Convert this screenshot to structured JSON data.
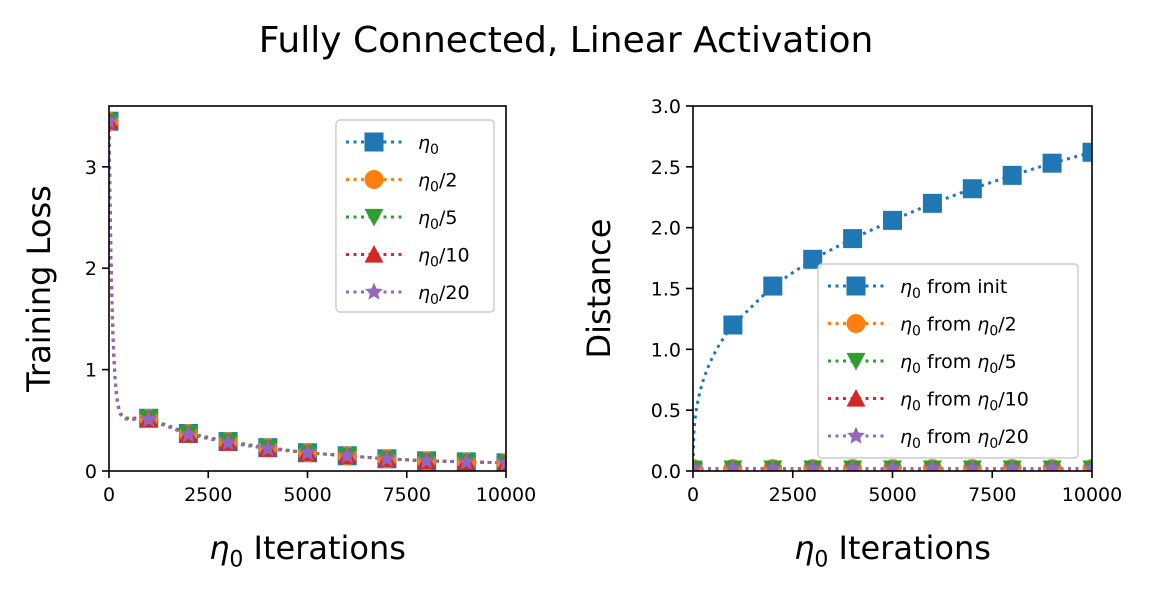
{
  "suptitle": "Fully Connected, Linear Activation",
  "colors": {
    "blue": "#1f77b4",
    "orange": "#ff7f0e",
    "green": "#2ca02c",
    "red": "#d62728",
    "purple": "#9467bd"
  },
  "chart_data": [
    {
      "type": "line",
      "title": "",
      "xlabel": "η₀ Iterations",
      "xlabel_parts": [
        "η",
        "0",
        " Iterations"
      ],
      "ylabel": "Training Loss",
      "xlim": [
        0,
        10000
      ],
      "ylim": [
        0,
        3.6
      ],
      "xticks": [
        0,
        2500,
        5000,
        7500,
        10000
      ],
      "xtick_labels": [
        "0",
        "2500",
        "5000",
        "7500",
        "10000"
      ],
      "yticks": [
        0,
        1,
        2,
        3
      ],
      "ytick_labels": [
        "0",
        "1",
        "2",
        "3"
      ],
      "legend_position": "top-right",
      "marker_x": [
        0,
        1000,
        2000,
        3000,
        4000,
        5000,
        6000,
        7000,
        8000,
        9000,
        10000
      ],
      "series": [
        {
          "name": "η0",
          "label_parts": [
            "η",
            "0",
            ""
          ],
          "color": "blue",
          "marker": "square",
          "x": [
            0,
            1000,
            2000,
            3000,
            4000,
            5000,
            6000,
            7000,
            8000,
            9000,
            10000
          ],
          "values": [
            3.45,
            0.52,
            0.37,
            0.29,
            0.23,
            0.18,
            0.15,
            0.12,
            0.1,
            0.09,
            0.08
          ]
        },
        {
          "name": "η0/2",
          "label_parts": [
            "η",
            "0",
            "/2"
          ],
          "color": "orange",
          "marker": "circle",
          "x": [
            0,
            1000,
            2000,
            3000,
            4000,
            5000,
            6000,
            7000,
            8000,
            9000,
            10000
          ],
          "values": [
            3.45,
            0.52,
            0.37,
            0.29,
            0.23,
            0.18,
            0.15,
            0.12,
            0.1,
            0.09,
            0.08
          ]
        },
        {
          "name": "η0/5",
          "label_parts": [
            "η",
            "0",
            "/5"
          ],
          "color": "green",
          "marker": "triangle-down",
          "x": [
            0,
            1000,
            2000,
            3000,
            4000,
            5000,
            6000,
            7000,
            8000,
            9000,
            10000
          ],
          "values": [
            3.45,
            0.52,
            0.37,
            0.29,
            0.23,
            0.18,
            0.15,
            0.12,
            0.1,
            0.09,
            0.08
          ]
        },
        {
          "name": "η0/10",
          "label_parts": [
            "η",
            "0",
            "/10"
          ],
          "color": "red",
          "marker": "triangle-up",
          "x": [
            0,
            1000,
            2000,
            3000,
            4000,
            5000,
            6000,
            7000,
            8000,
            9000,
            10000
          ],
          "values": [
            3.45,
            0.51,
            0.36,
            0.28,
            0.22,
            0.18,
            0.15,
            0.12,
            0.1,
            0.09,
            0.08
          ]
        },
        {
          "name": "η0/20",
          "label_parts": [
            "η",
            "0",
            "/20"
          ],
          "color": "purple",
          "marker": "star",
          "x": [
            0,
            1000,
            2000,
            3000,
            4000,
            5000,
            6000,
            7000,
            8000,
            9000,
            10000
          ],
          "values": [
            3.45,
            0.51,
            0.36,
            0.28,
            0.22,
            0.18,
            0.15,
            0.12,
            0.1,
            0.09,
            0.08
          ]
        }
      ]
    },
    {
      "type": "line",
      "title": "",
      "xlabel": "η₀ Iterations",
      "xlabel_parts": [
        "η",
        "0",
        " Iterations"
      ],
      "ylabel": "Distance",
      "xlim": [
        0,
        10000
      ],
      "ylim": [
        0,
        3.0
      ],
      "xticks": [
        0,
        2500,
        5000,
        7500,
        10000
      ],
      "xtick_labels": [
        "0",
        "2500",
        "5000",
        "7500",
        "10000"
      ],
      "yticks": [
        0,
        0.5,
        1.0,
        1.5,
        2.0,
        2.5,
        3.0
      ],
      "ytick_labels": [
        "0.0",
        "0.5",
        "1.0",
        "1.5",
        "2.0",
        "2.5",
        "3.0"
      ],
      "legend_position": "center-right",
      "series": [
        {
          "name": "η0 from init",
          "label_parts": [
            "η",
            "0",
            " from init"
          ],
          "color": "blue",
          "marker": "square",
          "x": [
            0,
            1000,
            2000,
            3000,
            4000,
            5000,
            6000,
            7000,
            8000,
            9000,
            10000
          ],
          "values": [
            0.0,
            1.2,
            1.52,
            1.74,
            1.91,
            2.06,
            2.2,
            2.32,
            2.43,
            2.53,
            2.62
          ]
        },
        {
          "name": "η0 from η0/2",
          "label_parts": [
            "η",
            "0",
            " from ",
            "η",
            "0",
            "/2"
          ],
          "color": "orange",
          "marker": "circle",
          "x": [
            0,
            1000,
            2000,
            3000,
            4000,
            5000,
            6000,
            7000,
            8000,
            9000,
            10000
          ],
          "values": [
            0.02,
            0.02,
            0.02,
            0.02,
            0.02,
            0.02,
            0.02,
            0.02,
            0.02,
            0.02,
            0.02
          ]
        },
        {
          "name": "η0 from η0/5",
          "label_parts": [
            "η",
            "0",
            " from ",
            "η",
            "0",
            "/5"
          ],
          "color": "green",
          "marker": "triangle-down",
          "x": [
            0,
            1000,
            2000,
            3000,
            4000,
            5000,
            6000,
            7000,
            8000,
            9000,
            10000
          ],
          "values": [
            0.02,
            0.02,
            0.02,
            0.02,
            0.02,
            0.02,
            0.02,
            0.02,
            0.02,
            0.02,
            0.02
          ]
        },
        {
          "name": "η0 from η0/10",
          "label_parts": [
            "η",
            "0",
            " from ",
            "η",
            "0",
            "/10"
          ],
          "color": "red",
          "marker": "triangle-up",
          "x": [
            0,
            1000,
            2000,
            3000,
            4000,
            5000,
            6000,
            7000,
            8000,
            9000,
            10000
          ],
          "values": [
            0.01,
            0.01,
            0.01,
            0.01,
            0.01,
            0.01,
            0.01,
            0.01,
            0.01,
            0.01,
            0.01
          ]
        },
        {
          "name": "η0 from η0/20",
          "label_parts": [
            "η",
            "0",
            " from ",
            "η",
            "0",
            "/20"
          ],
          "color": "purple",
          "marker": "star",
          "x": [
            0,
            1000,
            2000,
            3000,
            4000,
            5000,
            6000,
            7000,
            8000,
            9000,
            10000
          ],
          "values": [
            0.02,
            0.02,
            0.02,
            0.02,
            0.02,
            0.02,
            0.02,
            0.02,
            0.02,
            0.02,
            0.02
          ]
        }
      ]
    }
  ]
}
